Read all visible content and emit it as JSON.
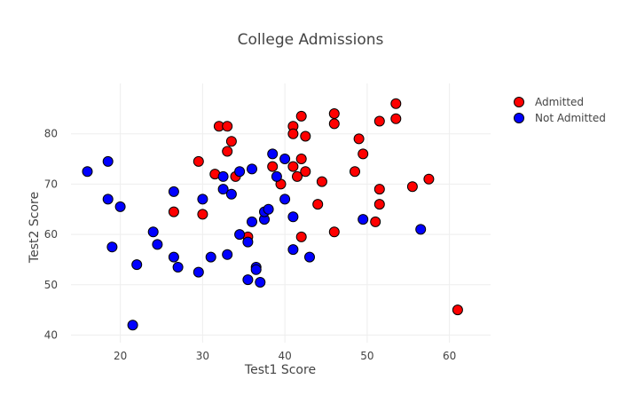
{
  "chart_data": {
    "type": "scatter",
    "title": "College Admissions",
    "xlabel": "Test1 Score",
    "ylabel": "Test2 Score",
    "xlim": [
      14,
      65
    ],
    "ylim": [
      38.5,
      90
    ],
    "xticks": [
      20,
      30,
      40,
      50,
      60
    ],
    "yticks": [
      40,
      50,
      60,
      70,
      80
    ],
    "grid": true,
    "legend_position": "top-right",
    "series": [
      {
        "name": "Admitted",
        "color": "#ff0000",
        "points": [
          [
            32,
            81.5
          ],
          [
            33,
            81.5
          ],
          [
            33.5,
            78.5
          ],
          [
            33,
            76.5
          ],
          [
            29.5,
            74.5
          ],
          [
            31.5,
            72
          ],
          [
            34,
            71.5
          ],
          [
            26.5,
            64.5
          ],
          [
            30,
            64
          ],
          [
            35.5,
            59.5
          ],
          [
            38.5,
            73.5
          ],
          [
            39.5,
            70
          ],
          [
            41,
            81.5
          ],
          [
            41,
            80
          ],
          [
            42,
            83.5
          ],
          [
            42.5,
            79.5
          ],
          [
            42,
            75
          ],
          [
            41,
            73.5
          ],
          [
            41.5,
            71.5
          ],
          [
            42.5,
            72.5
          ],
          [
            44.5,
            70.5
          ],
          [
            44,
            66
          ],
          [
            42,
            59.5
          ],
          [
            46,
            60.5
          ],
          [
            46,
            84
          ],
          [
            46,
            82
          ],
          [
            49,
            79
          ],
          [
            49.5,
            76
          ],
          [
            48.5,
            72.5
          ],
          [
            51.5,
            82.5
          ],
          [
            53.5,
            86
          ],
          [
            53.5,
            83
          ],
          [
            51.5,
            69
          ],
          [
            51.5,
            66
          ],
          [
            51,
            62.5
          ],
          [
            55.5,
            69.5
          ],
          [
            57.5,
            71
          ],
          [
            61,
            45
          ]
        ]
      },
      {
        "name": "Not Admitted",
        "color": "#0000ff",
        "points": [
          [
            16,
            72.5
          ],
          [
            18.5,
            74.5
          ],
          [
            18.5,
            67
          ],
          [
            20,
            65.5
          ],
          [
            19,
            57.5
          ],
          [
            22,
            54
          ],
          [
            21.5,
            42
          ],
          [
            24,
            60.5
          ],
          [
            24.5,
            58
          ],
          [
            26.5,
            68.5
          ],
          [
            26.5,
            55.5
          ],
          [
            27,
            53.5
          ],
          [
            29.5,
            52.5
          ],
          [
            30,
            67
          ],
          [
            31,
            55.5
          ],
          [
            32.5,
            71.5
          ],
          [
            32.5,
            69
          ],
          [
            33.5,
            68
          ],
          [
            34.5,
            72.5
          ],
          [
            36,
            73
          ],
          [
            33,
            56
          ],
          [
            34.5,
            60
          ],
          [
            35.5,
            58.5
          ],
          [
            36,
            62.5
          ],
          [
            37.5,
            63
          ],
          [
            37.5,
            64.5
          ],
          [
            38,
            65
          ],
          [
            36.5,
            53.5
          ],
          [
            36.5,
            53
          ],
          [
            35.5,
            51
          ],
          [
            37,
            50.5
          ],
          [
            38.5,
            76
          ],
          [
            39,
            71.5
          ],
          [
            40,
            75
          ],
          [
            40,
            67
          ],
          [
            41,
            63.5
          ],
          [
            41,
            57
          ],
          [
            43,
            55.5
          ],
          [
            49.5,
            63
          ],
          [
            56.5,
            61
          ]
        ]
      }
    ]
  }
}
